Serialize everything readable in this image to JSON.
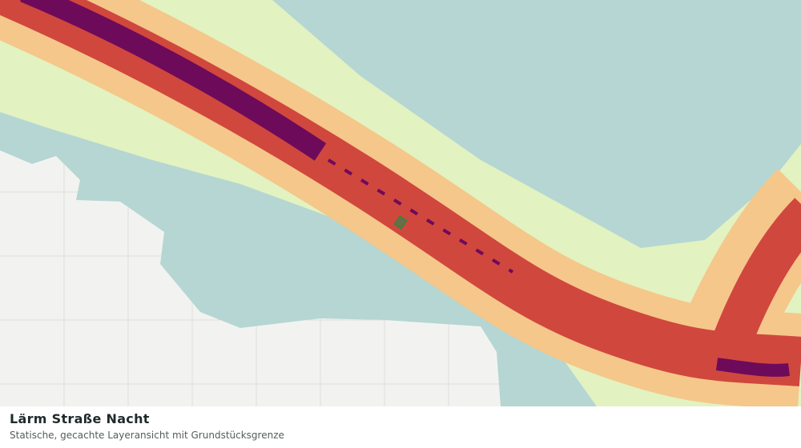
{
  "header": {
    "title": "Lärm Straße Nacht",
    "subtitle": "Statische, gecachte Layeransicht mit Grundstücksgrenze"
  }
}
